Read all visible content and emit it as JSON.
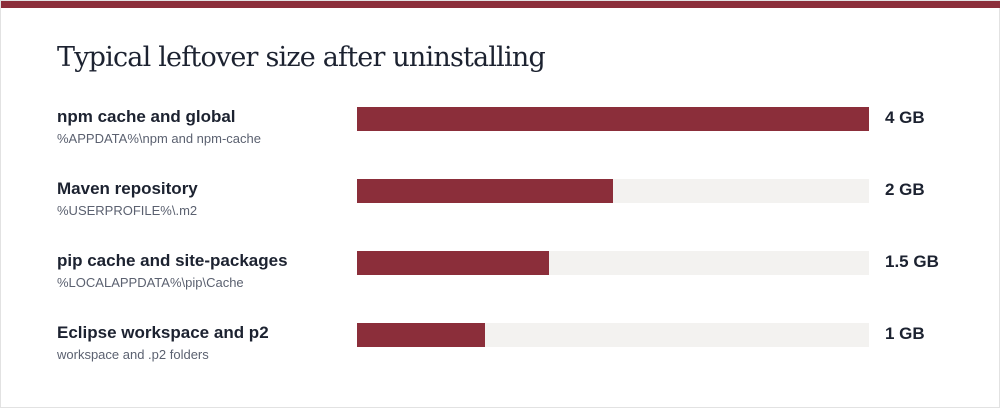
{
  "chart_data": {
    "type": "bar",
    "orientation": "horizontal",
    "title": "Typical leftover size after uninstalling",
    "unit": "GB",
    "xlim": [
      0,
      4
    ],
    "grid": false,
    "categories": [
      "npm cache and global",
      "Maven repository",
      "pip cache and site-packages",
      "Eclipse workspace and p2"
    ],
    "subtitles": [
      "%APPDATA%\\npm and npm-cache",
      "%USERPROFILE%\\.m2",
      "%LOCALAPPDATA%\\pip\\Cache",
      "workspace and .p2 folders"
    ],
    "values": [
      4,
      2,
      1.5,
      1
    ],
    "value_labels": [
      "4 GB",
      "2 GB",
      "1.5 GB",
      "1 GB"
    ],
    "colors": {
      "bar": "#8b2e3a",
      "track": "#f3f2f0",
      "accent": "#8b2e3a"
    }
  }
}
